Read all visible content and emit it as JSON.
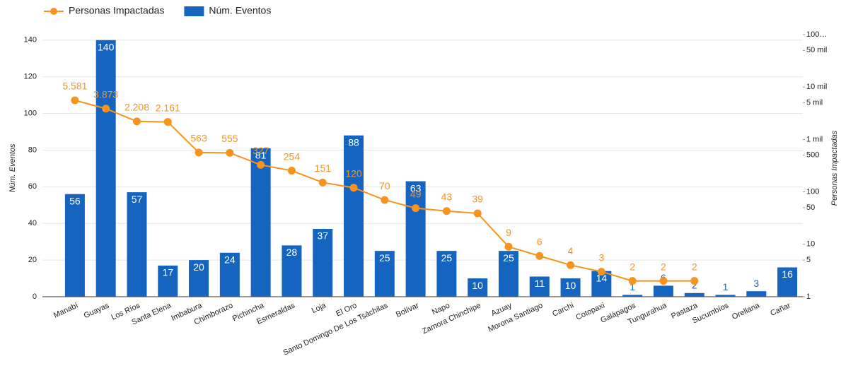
{
  "chart_data": {
    "type": "combo",
    "y_label": "Núm. Eventos",
    "y2_label": "Personas Impactadas",
    "categories": [
      "Manabí",
      "Guayas",
      "Los Ríos",
      "Santa Elena",
      "Imbabura",
      "Chimborazo",
      "Pichincha",
      "Esmeraldas",
      "Loja",
      "El Oro",
      "Santo Domingo De Los Tsáchilas",
      "Bolívar",
      "Napo",
      "Zamora Chinchipe",
      "Azuay",
      "Morona Santiago",
      "Carchi",
      "Cotopaxi",
      "Galápagos",
      "Tungurahua",
      "Pastaza",
      "Sucumbíos",
      "Orellana",
      "Cañar"
    ],
    "series": [
      {
        "name": "Núm. Eventos",
        "type": "bar",
        "color": "#1565c0",
        "values": [
          56,
          140,
          57,
          17,
          20,
          24,
          81,
          28,
          37,
          88,
          25,
          63,
          25,
          10,
          25,
          11,
          10,
          14,
          1,
          6,
          2,
          1,
          3,
          16
        ]
      },
      {
        "name": "Personas Impactadas",
        "type": "line",
        "axis": "y2",
        "color": "#f7931e",
        "values": [
          5581,
          3873,
          2208,
          2161,
          563,
          555,
          327,
          254,
          151,
          120,
          70,
          49,
          43,
          39,
          9,
          6,
          4,
          3,
          2,
          2,
          2,
          null,
          null,
          null
        ],
        "value_labels": [
          "5.581",
          "3.873",
          "2.208",
          "2.161",
          "563",
          "555",
          "327",
          "254",
          "151",
          "120",
          "70",
          "49",
          "43",
          "39",
          "9",
          "6",
          "4",
          "3",
          "2",
          "2",
          "2",
          null,
          null,
          null
        ]
      }
    ],
    "ylim": [
      0,
      143
    ],
    "yticks": [
      0,
      20,
      40,
      60,
      80,
      100,
      120,
      140
    ],
    "y2lim": [
      1,
      100000
    ],
    "y2_log": true,
    "y2ticks": [
      1,
      5,
      10,
      50,
      100,
      500,
      {
        "value": 1000,
        "label": "1 mil"
      },
      {
        "value": 5000,
        "label": "5 mil"
      },
      {
        "value": 10000,
        "label": "10 mil"
      },
      {
        "value": 50000,
        "label": "50 mil"
      },
      {
        "value": 100000,
        "label": "100…"
      }
    ],
    "grid": true,
    "legend": "top-left"
  }
}
